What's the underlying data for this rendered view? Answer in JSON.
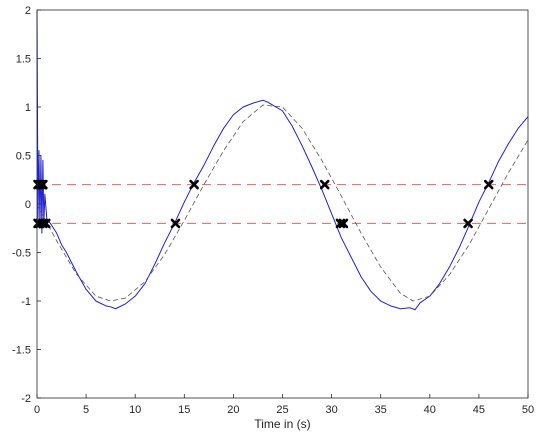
{
  "chart_data": {
    "type": "line",
    "title": "",
    "xlabel": "Time in (s)",
    "ylabel": "",
    "xlim": [
      0,
      50
    ],
    "ylim": [
      -2,
      2
    ],
    "grid": false,
    "legend": "none",
    "x_ticks": [
      "0",
      "5",
      "10",
      "15",
      "20",
      "25",
      "30",
      "35",
      "40",
      "45",
      "50"
    ],
    "y_ticks": [
      "-2",
      "-1.5",
      "-1",
      "-0.5",
      "0",
      "0.5",
      "1",
      "1.5",
      "2"
    ],
    "series": [
      {
        "kind": "noisy-signal",
        "color": "#1f1fd6",
        "x": [
          0,
          0.1,
          0.2,
          0.3,
          0.4,
          0.5,
          0.6,
          0.7,
          0.8,
          1,
          1.5,
          2,
          2.5,
          3,
          4,
          5,
          6,
          7,
          7.5,
          8,
          9,
          10,
          11,
          12,
          13,
          14,
          15,
          16,
          17,
          18,
          19,
          20,
          21,
          22,
          23,
          23.5,
          24,
          25,
          26,
          27,
          28,
          29,
          30,
          31,
          32,
          33,
          34,
          35,
          36,
          37,
          38,
          38.5,
          39,
          40,
          41,
          42,
          43,
          44,
          45,
          46,
          47,
          48,
          49,
          50
        ],
        "y": [
          2.0,
          -0.15,
          0.55,
          -0.25,
          0.5,
          -0.3,
          0.45,
          -0.2,
          0.1,
          -0.15,
          -0.22,
          -0.3,
          -0.42,
          -0.5,
          -0.7,
          -0.88,
          -1.0,
          -1.05,
          -1.06,
          -1.08,
          -1.03,
          -0.95,
          -0.82,
          -0.62,
          -0.4,
          -0.2,
          0.02,
          0.22,
          0.4,
          0.6,
          0.78,
          0.92,
          1.0,
          1.04,
          1.07,
          1.05,
          1.02,
          0.96,
          0.8,
          0.6,
          0.38,
          0.15,
          -0.1,
          -0.35,
          -0.55,
          -0.75,
          -0.9,
          -1.0,
          -1.05,
          -1.08,
          -1.07,
          -1.09,
          -1.02,
          -0.95,
          -0.82,
          -0.65,
          -0.45,
          -0.22,
          0.02,
          0.22,
          0.44,
          0.62,
          0.78,
          0.9
        ]
      },
      {
        "kind": "fitted-curve",
        "color": "#555555",
        "x": [
          0,
          2,
          4,
          6,
          7.5,
          9,
          11,
          13,
          15,
          17,
          19,
          21,
          23,
          25,
          27,
          29,
          31,
          33,
          35,
          37,
          38.3,
          40,
          42,
          44,
          46,
          48,
          50
        ],
        "y": [
          0.0,
          -0.38,
          -0.72,
          -0.95,
          -1.0,
          -0.97,
          -0.8,
          -0.52,
          -0.17,
          0.2,
          0.55,
          0.85,
          1.02,
          1.0,
          0.78,
          0.45,
          0.08,
          -0.3,
          -0.65,
          -0.92,
          -1.0,
          -0.95,
          -0.73,
          -0.42,
          -0.05,
          0.32,
          0.66
        ]
      }
    ],
    "thresholds": [
      {
        "y": 0.2,
        "color": "#e06666"
      },
      {
        "y": -0.2,
        "color": "#e06666"
      }
    ],
    "crossings": {
      "color": "#000000",
      "x": [
        0.1,
        0.3,
        0.5,
        0.6,
        0.1,
        0.3,
        0.6,
        0.9,
        14.1,
        16.0,
        29.3,
        30.9,
        31.2,
        43.9,
        46.0
      ],
      "y": [
        0.2,
        0.2,
        0.2,
        0.2,
        -0.2,
        -0.2,
        -0.2,
        -0.2,
        -0.2,
        0.2,
        0.2,
        -0.2,
        -0.2,
        -0.2,
        0.2
      ]
    }
  }
}
